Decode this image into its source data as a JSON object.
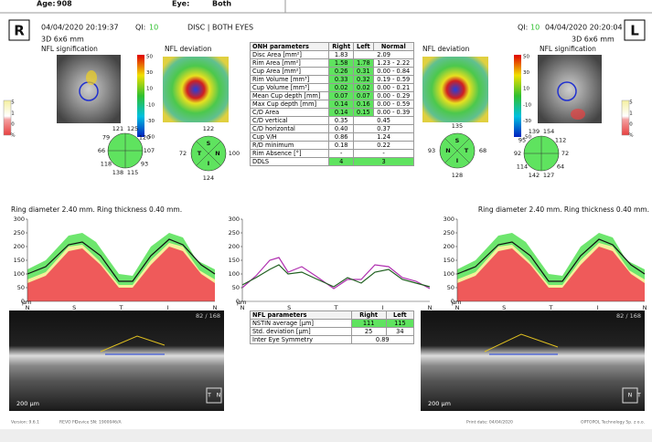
{
  "header": {
    "age_label": "Age:",
    "age": "908",
    "eye_label": "Eye:",
    "eye": "Both",
    "scan": "DISC | BOTH EYES"
  },
  "right_eye": {
    "code": "R",
    "datetime": "04/04/2020 20:19:37",
    "qi_label": "QI:",
    "qi": "10",
    "protocol": "3D  6x6 mm",
    "signification_title": "NFL signification",
    "deviation_title": "NFL deviation",
    "clock": [
      "125",
      "120",
      "107",
      "93",
      "115",
      "138",
      "118",
      "66",
      "79",
      "121"
    ],
    "quadrants": {
      "S": "122",
      "N": "100",
      "I": "124",
      "T": "72"
    },
    "ring": "Ring diameter 2.40 mm. Ring thickness 0.40 mm.",
    "frame": "82 / 168",
    "scale": "200 µm",
    "orient_left": "T",
    "orient_right": "N"
  },
  "left_eye": {
    "code": "L",
    "datetime": "04/04/2020 20:20:04",
    "qi_label": "QI:",
    "qi": "10",
    "protocol": "3D  6x6 mm",
    "signification_title": "NFL signification",
    "deviation_title": "NFL deviation",
    "clock": [
      "154",
      "112",
      "72",
      "64",
      "127",
      "142",
      "114",
      "92",
      "95",
      "139"
    ],
    "quadrants": {
      "S": "135",
      "N": "93",
      "I": "128",
      "T": "68"
    },
    "ring": "Ring diameter 2.40 mm. Ring thickness 0.40 mm.",
    "frame": "82 / 168",
    "scale": "200 µm",
    "orient_left": "N",
    "orient_right": "T"
  },
  "deviation_scale": [
    "50",
    "30",
    "10",
    "-10",
    "-30",
    "-50"
  ],
  "signification_scale": [
    "5",
    "1",
    "0",
    "%"
  ],
  "tsnit": {
    "ylim": [
      0,
      300
    ],
    "yticks": [
      300,
      250,
      200,
      150,
      100,
      50,
      0
    ],
    "unit": "µm",
    "xlabels": [
      "N",
      "S",
      "T",
      "I",
      "N"
    ]
  },
  "onh_table": {
    "header": [
      "ONH parameters",
      "Right",
      "Left",
      "Normal"
    ],
    "rows": [
      [
        "Disc Area [mm²]",
        "1.83",
        "2.09"
      ],
      [
        "Rim Area [mm²]",
        "1.58",
        "1.78",
        "1.23 - 2.22"
      ],
      [
        "Cup Area [mm²]",
        "0.26",
        "0.31",
        "0.00 - 0.84"
      ],
      [
        "Rim Volume [mm³]",
        "0.33",
        "0.32",
        "0.19 - 0.59"
      ],
      [
        "Cup Volume [mm³]",
        "0.02",
        "0.02",
        "0.00 - 0.21"
      ],
      [
        "Mean Cup depth [mm]",
        "0.07",
        "0.07",
        "0.00 - 0.29"
      ],
      [
        "Max Cup depth [mm]",
        "0.14",
        "0.16",
        "0.00 - 0.59"
      ],
      [
        "C/D Area",
        "0.14",
        "0.15",
        "0.00 - 0.39"
      ],
      [
        "C/D vertical",
        "0.35",
        "0.45"
      ],
      [
        "C/D horizontal",
        "0.40",
        "0.37"
      ],
      [
        "Cup V/H",
        "0.86",
        "1.24"
      ],
      [
        "R/D minimum",
        "0.18",
        "0.22"
      ],
      [
        "Rim Absence [°]",
        "-",
        "-"
      ],
      [
        "DDLS",
        "4",
        "3"
      ]
    ]
  },
  "nfl_table": {
    "header": [
      "NFL parameters",
      "Right",
      "Left"
    ],
    "rows": [
      [
        "NSTIN average [µm]",
        "111",
        "115"
      ],
      [
        "Std. deviation [µm]",
        "25",
        "34"
      ],
      [
        "Inter Eye Symmetry",
        "0.89"
      ]
    ]
  },
  "footer": {
    "version": "Version: 9.6.1",
    "device": "REVO FC",
    "serial": "Device SN: 1900046/A",
    "print_date": "Print date: 04/04/2020",
    "company": "OPTOPOL Technology Sp. z o.o."
  }
}
